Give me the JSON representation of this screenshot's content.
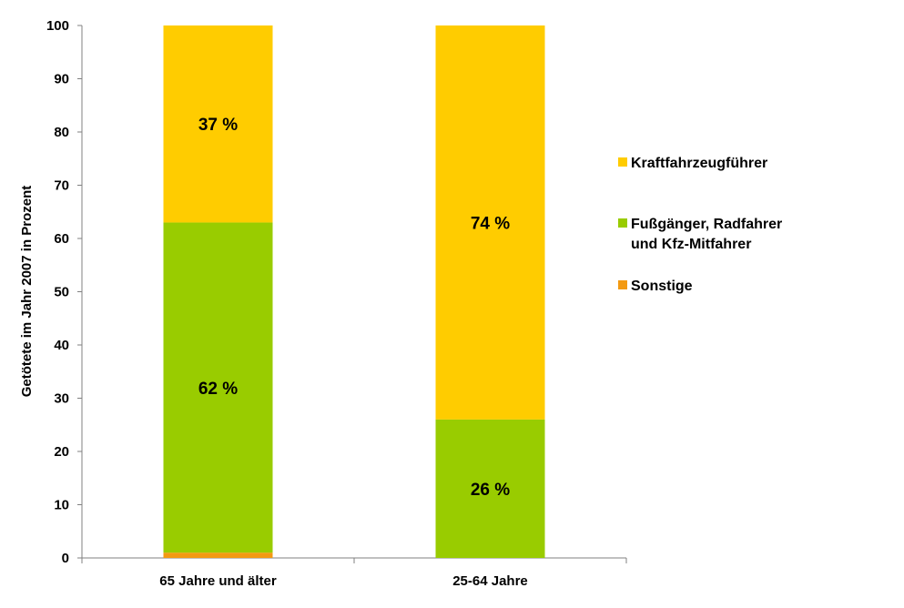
{
  "chart_data": {
    "type": "bar",
    "stacked": true,
    "categories": [
      "65 Jahre und älter",
      "25-64 Jahre"
    ],
    "series": [
      {
        "name": "Sonstige",
        "color": "#F39A12",
        "values": [
          1,
          0
        ],
        "labels": [
          "",
          ""
        ]
      },
      {
        "name": "Fußgänger, Radfahrer und Kfz-Mitfahrer",
        "name_lines": [
          "Fußgänger, Radfahrer",
          "und Kfz-Mitfahrer"
        ],
        "color": "#99CC00",
        "values": [
          62,
          26
        ],
        "labels": [
          "62 %",
          "26 %"
        ]
      },
      {
        "name": "Kraftfahrzeugführer",
        "name_lines": [
          "Kraftfahrzeugführer"
        ],
        "color": "#FFCC00",
        "values": [
          37,
          74
        ],
        "labels": [
          "37 %",
          "74 %"
        ]
      }
    ],
    "legend_order": [
      2,
      1,
      0
    ],
    "ylabel": "Getötete im Jahr 2007 in Prozent",
    "ylim": [
      0,
      100
    ],
    "yticks": [
      0,
      10,
      20,
      30,
      40,
      50,
      60,
      70,
      80,
      90,
      100
    ],
    "grid": false,
    "legend_position": "right"
  }
}
